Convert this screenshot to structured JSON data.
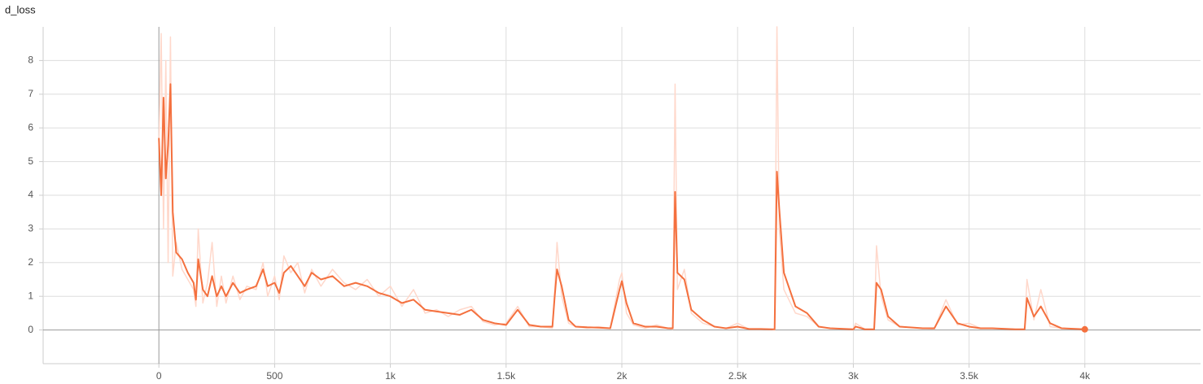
{
  "chart_data": {
    "type": "line",
    "title": "d_loss",
    "x": [
      0,
      10,
      20,
      30,
      40,
      50,
      60,
      75,
      100,
      125,
      150,
      160,
      170,
      190,
      210,
      230,
      250,
      270,
      290,
      320,
      350,
      380,
      420,
      450,
      470,
      500,
      520,
      540,
      570,
      600,
      630,
      660,
      700,
      750,
      800,
      850,
      900,
      950,
      1000,
      1050,
      1100,
      1150,
      1200,
      1250,
      1300,
      1350,
      1400,
      1450,
      1500,
      1550,
      1600,
      1650,
      1700,
      1710,
      1720,
      1740,
      1770,
      1800,
      1850,
      1900,
      1950,
      1990,
      2000,
      2020,
      2050,
      2100,
      2150,
      2200,
      2220,
      2230,
      2240,
      2270,
      2300,
      2350,
      2400,
      2450,
      2500,
      2550,
      2600,
      2650,
      2660,
      2670,
      2680,
      2700,
      2750,
      2800,
      2850,
      2900,
      3000,
      3010,
      3050,
      3090,
      3100,
      3120,
      3150,
      3200,
      3300,
      3350,
      3400,
      3450,
      3500,
      3550,
      3600,
      3700,
      3740,
      3750,
      3780,
      3810,
      3850,
      3900,
      4000
    ],
    "series": [
      {
        "color": "#ffd8cb",
        "values": [
          5.5,
          8.8,
          3.0,
          8.0,
          2.0,
          8.7,
          1.6,
          2.6,
          1.8,
          1.5,
          1.2,
          0.7,
          3.0,
          0.8,
          1.4,
          2.6,
          0.7,
          1.6,
          0.8,
          1.6,
          0.9,
          1.3,
          1.2,
          2.0,
          1.0,
          1.6,
          0.9,
          2.2,
          1.7,
          2.0,
          1.1,
          1.8,
          1.3,
          1.8,
          1.4,
          1.2,
          1.5,
          1.0,
          1.3,
          0.7,
          1.2,
          0.5,
          0.6,
          0.4,
          0.6,
          0.7,
          0.25,
          0.15,
          0.2,
          0.7,
          0.1,
          0.1,
          0.05,
          1.2,
          2.6,
          1.0,
          0.2,
          0.1,
          0.05,
          0.1,
          0.05,
          1.5,
          1.7,
          0.5,
          0.15,
          0.05,
          0.15,
          0.05,
          0.02,
          7.3,
          1.2,
          1.8,
          0.5,
          0.2,
          0.1,
          0.05,
          0.2,
          0.02,
          0.02,
          0.02,
          0.0,
          9.0,
          3.0,
          1.2,
          0.5,
          0.4,
          0.1,
          0.05,
          0.02,
          0.2,
          0.02,
          0.02,
          2.5,
          1.0,
          0.3,
          0.1,
          0.05,
          0.03,
          0.9,
          0.15,
          0.2,
          0.05,
          0.05,
          0.02,
          0.02,
          1.5,
          0.3,
          1.2,
          0.1,
          0.05,
          0.02
        ]
      },
      {
        "color": "#f4703e",
        "values": [
          5.7,
          4.0,
          6.9,
          4.5,
          5.5,
          7.3,
          3.5,
          2.3,
          2.1,
          1.7,
          1.4,
          0.9,
          2.1,
          1.2,
          1.0,
          1.6,
          1.0,
          1.3,
          1.0,
          1.4,
          1.1,
          1.2,
          1.3,
          1.8,
          1.3,
          1.4,
          1.1,
          1.7,
          1.9,
          1.6,
          1.3,
          1.7,
          1.5,
          1.6,
          1.3,
          1.4,
          1.3,
          1.1,
          1.0,
          0.8,
          0.9,
          0.6,
          0.55,
          0.5,
          0.45,
          0.6,
          0.3,
          0.2,
          0.15,
          0.6,
          0.15,
          0.1,
          0.1,
          1.0,
          1.8,
          1.3,
          0.3,
          0.1,
          0.08,
          0.07,
          0.05,
          1.2,
          1.45,
          0.8,
          0.2,
          0.1,
          0.1,
          0.05,
          0.05,
          4.1,
          1.7,
          1.5,
          0.6,
          0.3,
          0.1,
          0.05,
          0.1,
          0.03,
          0.03,
          0.02,
          0.02,
          4.7,
          3.6,
          1.7,
          0.7,
          0.5,
          0.1,
          0.05,
          0.02,
          0.1,
          0.02,
          0.02,
          1.4,
          1.2,
          0.4,
          0.1,
          0.05,
          0.05,
          0.7,
          0.2,
          0.1,
          0.05,
          0.05,
          0.02,
          0.02,
          0.95,
          0.4,
          0.7,
          0.2,
          0.05,
          0.02
        ]
      }
    ],
    "xlim": [
      -500,
      4500
    ],
    "ylim": [
      -1,
      9
    ],
    "xticks": [
      0,
      500,
      {
        "value": 1000,
        "label": "1k"
      },
      {
        "value": 1500,
        "label": "1.5k"
      },
      {
        "value": 2000,
        "label": "2k"
      },
      {
        "value": 2500,
        "label": "2.5k"
      },
      {
        "value": 3000,
        "label": "3k"
      },
      {
        "value": 3500,
        "label": "3.5k"
      },
      {
        "value": 4000,
        "label": "4k"
      }
    ],
    "yticks": [
      0,
      1,
      2,
      3,
      4,
      5,
      6,
      7,
      8
    ],
    "grid": true
  }
}
